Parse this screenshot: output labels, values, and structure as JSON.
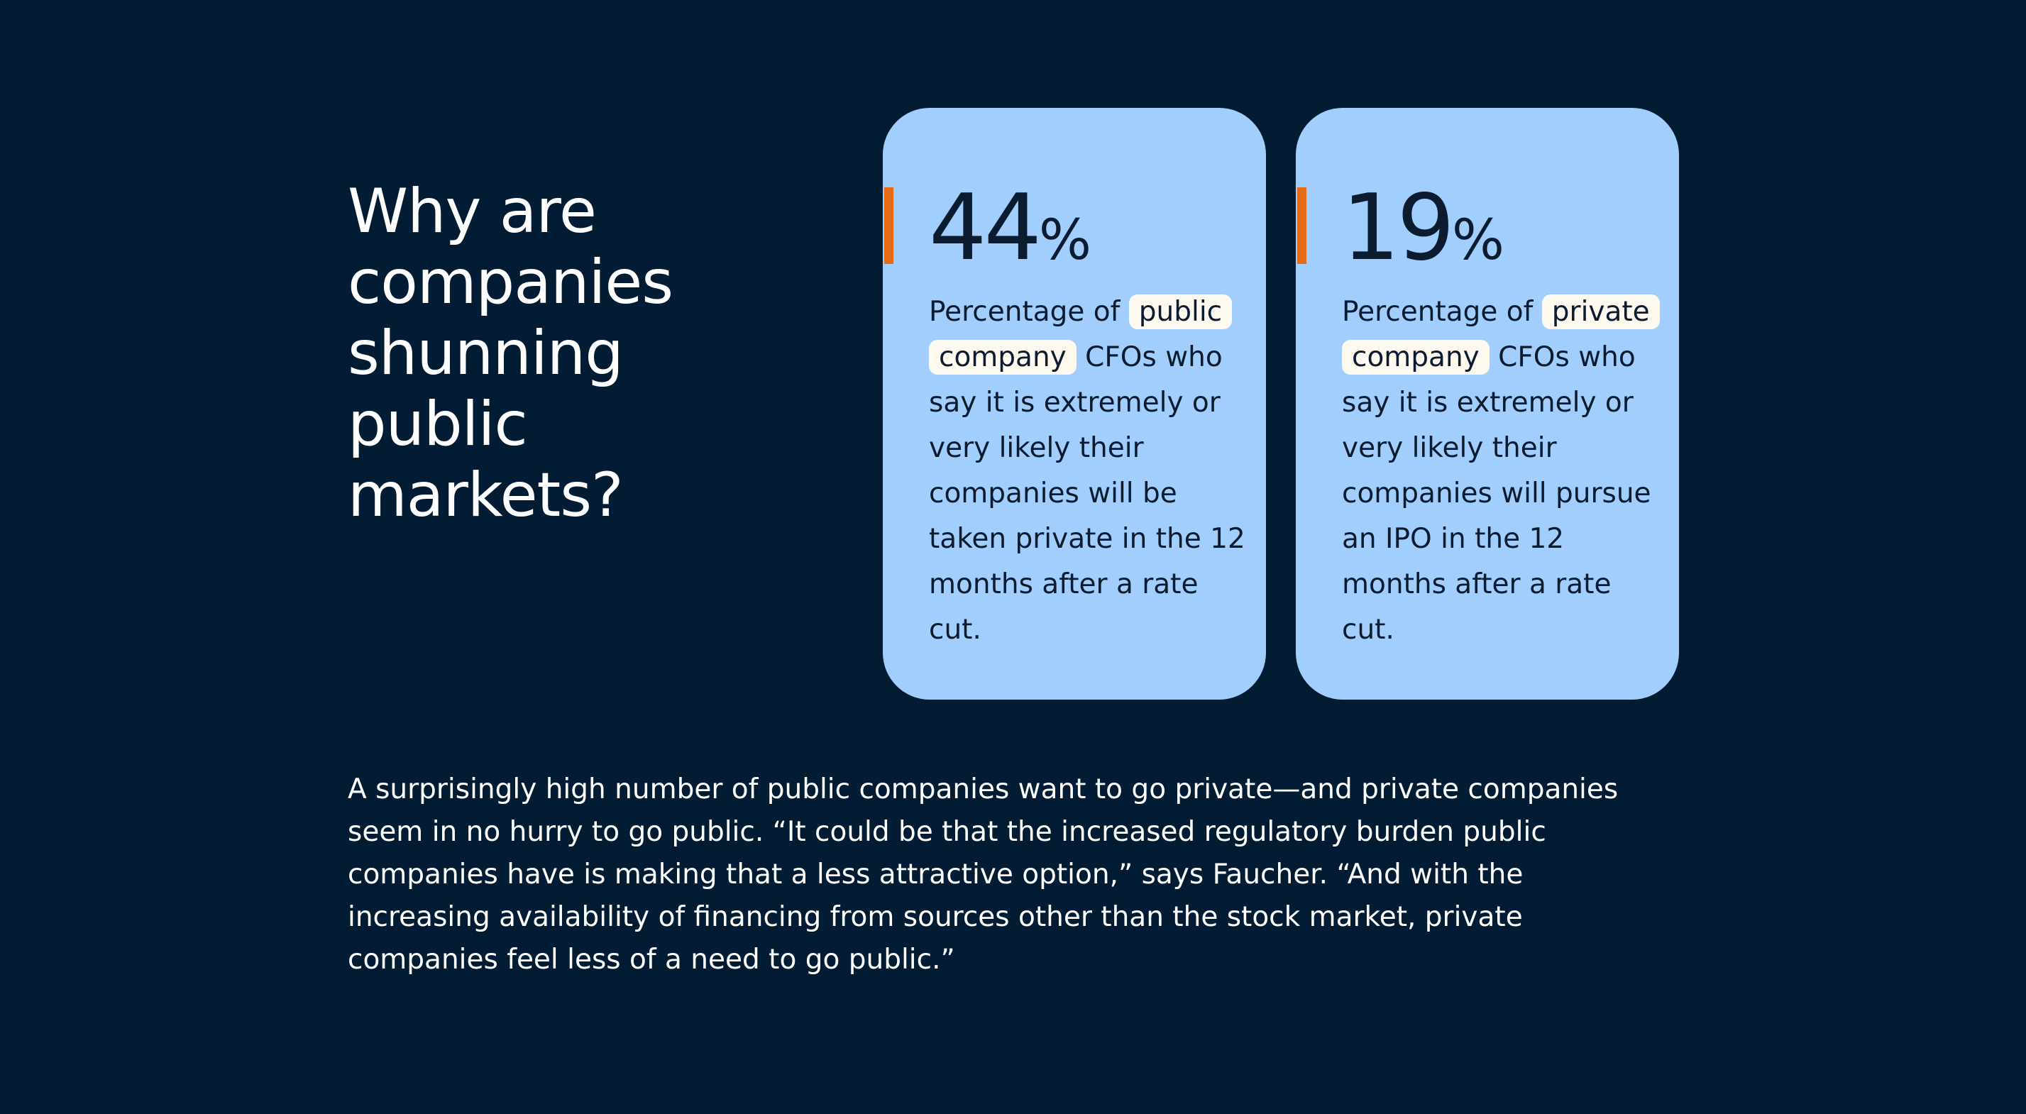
{
  "headline": "Why are companies shunning public markets?",
  "colors": {
    "background": "#021d33",
    "card": "#a1cefc",
    "accent": "#e66b16",
    "highlight": "#fff8ef",
    "card_text": "#0b1c30"
  },
  "cards": [
    {
      "value": "44",
      "unit": "%",
      "desc_before": "Percentage of ",
      "desc_highlight": "public company",
      "desc_after": " CFOs who say it is extremely or very likely their companies will be taken private in the 12 months after a rate cut."
    },
    {
      "value": "19",
      "unit": "%",
      "desc_before": "Percentage of ",
      "desc_highlight": "private company",
      "desc_after": " CFOs who say it is extremely or very likely their companies will pursue an IPO in the 12 months after a rate cut."
    }
  ],
  "body": "A surprisingly high number of public companies want to go private—and private companies seem in no hurry to go public. “It could be that the increased regulatory burden public companies have is making that a less attractive option,” says Faucher. “And with the increasing availability of financing from sources other than the stock market, private companies feel less of a need to go public.”"
}
